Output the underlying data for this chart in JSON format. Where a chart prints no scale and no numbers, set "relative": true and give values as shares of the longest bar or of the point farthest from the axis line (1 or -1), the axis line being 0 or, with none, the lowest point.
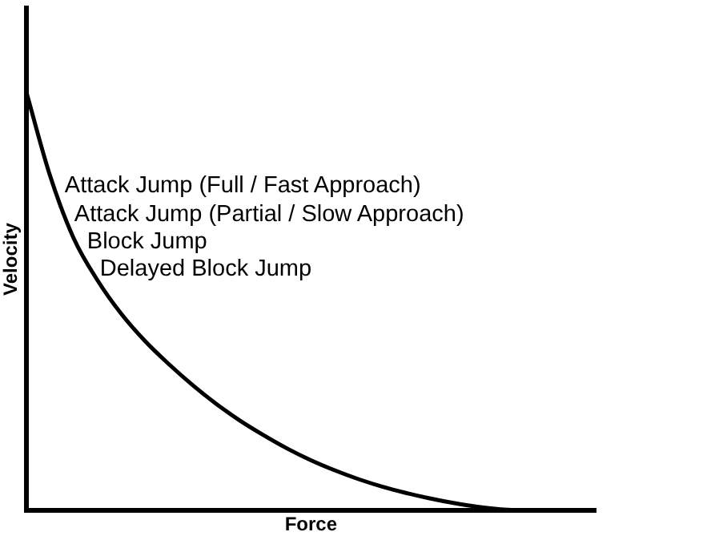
{
  "chart_data": {
    "type": "line",
    "relative": true,
    "xlabel": "Force",
    "ylabel": "Velocity",
    "tick_labels": false,
    "grid": false,
    "legend": false,
    "marker": "none",
    "line_style": "solid",
    "categories": [
      null,
      null,
      null,
      null,
      null,
      null,
      null,
      null,
      null,
      null,
      null,
      null,
      null,
      null,
      null,
      null,
      null,
      null,
      null,
      null,
      null,
      null,
      null,
      null,
      null
    ],
    "series": [
      {
        "color": "#000000",
        "values": [
          1.0,
          0.8,
          0.65,
          0.55,
          0.47,
          0.405,
          0.35,
          0.3,
          0.255,
          0.215,
          0.18,
          0.148,
          0.12,
          0.096,
          0.075,
          0.057,
          0.042,
          0.029,
          0.018,
          0.009,
          0.003,
          0.0,
          null,
          null,
          null
        ]
      }
    ],
    "annotations": [
      "Attack Jump (Full / Fast Approach)",
      "Attack Jump (Partial / Slow Approach)",
      "Block Jump",
      "Delayed Block Jump"
    ]
  }
}
